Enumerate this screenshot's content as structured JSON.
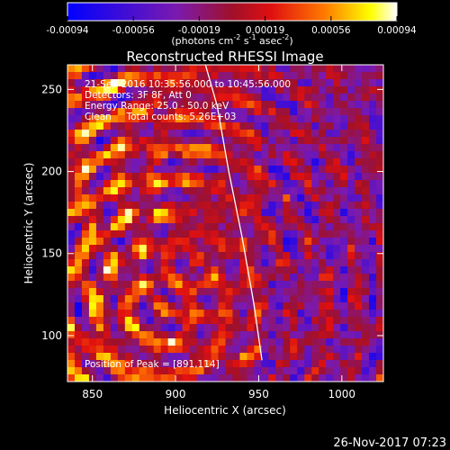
{
  "chart_data": {
    "type": "heatmap",
    "title": "Reconstructed RHESSI Image",
    "xlabel": "Heliocentric X (arcsec)",
    "ylabel": "Heliocentric Y (arcsec)",
    "xlim": [
      835,
      1025
    ],
    "ylim": [
      72,
      265
    ],
    "xticks": [
      850,
      900,
      950,
      1000
    ],
    "yticks": [
      100,
      150,
      200,
      250
    ],
    "colorbar": {
      "range": [
        -0.00094,
        0.00094
      ],
      "ticks": [
        "-0.00094",
        "-0.00056",
        "-0.00019",
        "0.00019",
        "0.00056",
        "0.00094"
      ],
      "unit_main": "(photons cm",
      "unit_exp1": "-2",
      "unit_mid1": " s",
      "unit_exp2": "-1",
      "unit_mid2": " asec",
      "unit_exp3": "-2",
      "unit_end": ")"
    },
    "annotations": [
      "21-Sep-2016 10:35:56.000 to 10:45:56.000",
      "Detectors: 3F 8F, Att 0",
      "Energy Range: 25.0 - 50.0 keV",
      "Clean     Total counts: 5.26E+03"
    ],
    "peak_label": "Position of Peak = [891,114]",
    "limb_curve": [
      [
        918,
        265
      ],
      [
        925,
        240
      ],
      [
        932,
        200
      ],
      [
        940,
        160
      ],
      [
        947,
        120
      ],
      [
        952,
        85
      ]
    ]
  },
  "footer": {
    "date": "26-Nov-2017 07:23"
  },
  "colors": {
    "background": "#000000",
    "limb": "#ffffff"
  }
}
